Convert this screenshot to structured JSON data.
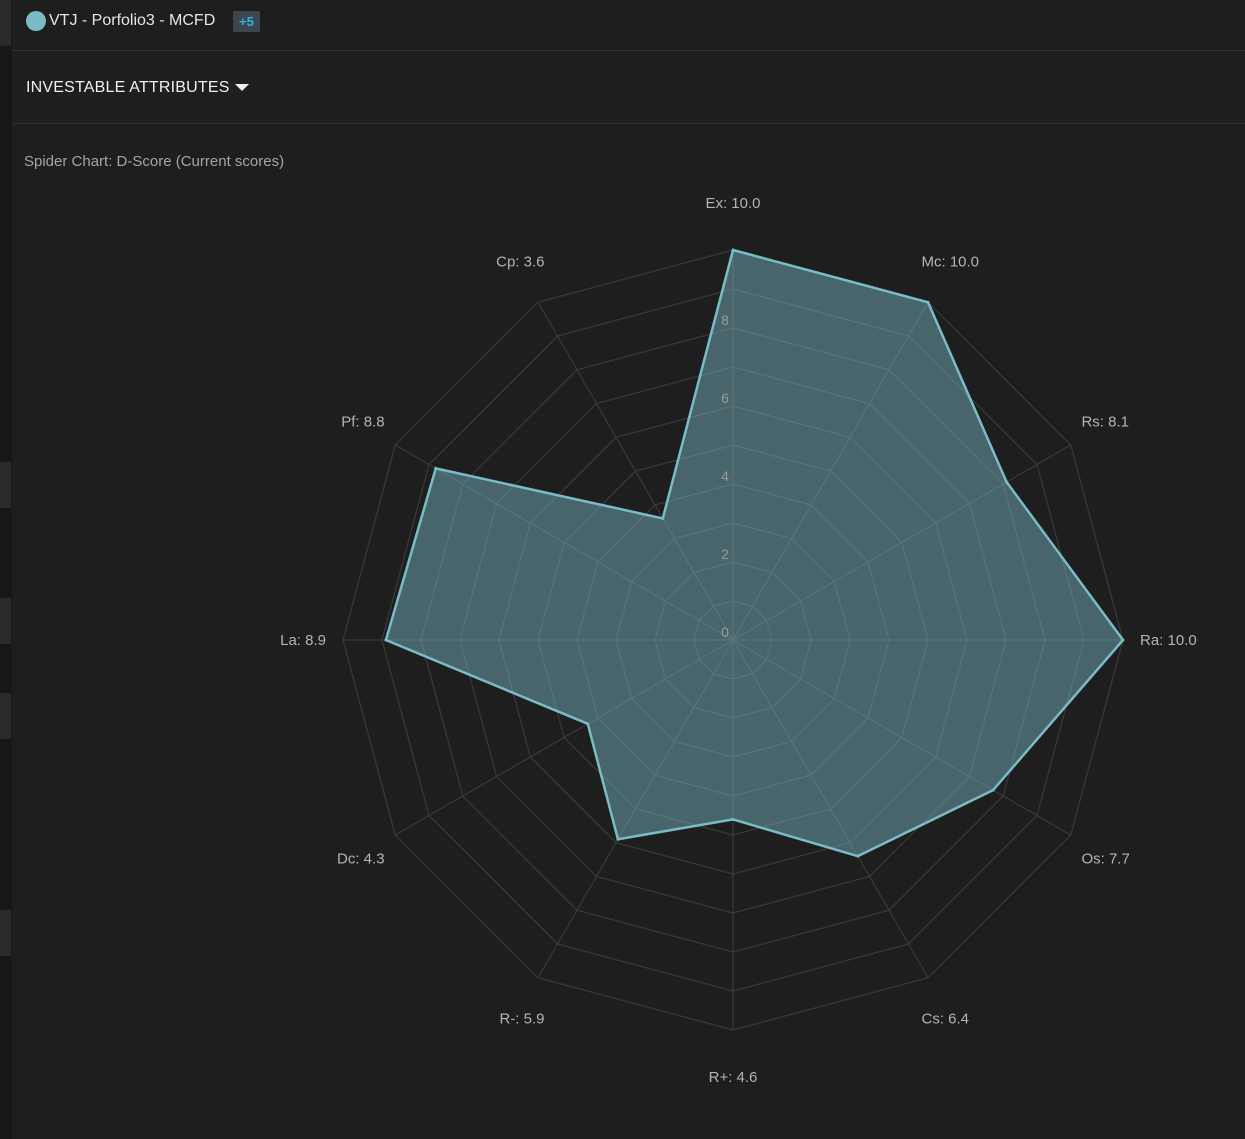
{
  "header": {
    "legend_color": "#79bcc7",
    "portfolio_name": "VTJ - Porfolio3 - MCFD",
    "more_badge": "+5"
  },
  "section": {
    "title": "INVESTABLE ATTRIBUTES",
    "caret_icon": "caret-down-icon"
  },
  "chart_caption": "Spider Chart: D-Score (Current scores)",
  "chart_data": {
    "type": "radar",
    "title": "Spider Chart: D-Score (Current scores)",
    "axes": [
      "Ex",
      "Mc",
      "Rs",
      "Ra",
      "Os",
      "Cs",
      "R+",
      "R-",
      "Dc",
      "La",
      "Pf",
      "Cp"
    ],
    "axis_labels": [
      "Ex: 10.0",
      "Mc: 10.0",
      "Rs: 8.1",
      "Ra: 10.0",
      "Os: 7.7",
      "Cs: 6.4",
      "R+: 4.6",
      "R-: 5.9",
      "Dc: 4.3",
      "La: 8.9",
      "Pf: 8.8",
      "Cp: 3.6"
    ],
    "series": [
      {
        "name": "VTJ - Porfolio3 - MCFD",
        "values": [
          10.0,
          10.0,
          8.1,
          10.0,
          7.7,
          6.4,
          4.6,
          5.9,
          4.3,
          8.9,
          8.8,
          3.6
        ],
        "color": "#79bcc7"
      }
    ],
    "rmin": 0,
    "rmax": 10,
    "tick_values": [
      0,
      2,
      4,
      6,
      8
    ],
    "tick_labels": [
      "0",
      "2",
      "4",
      "6",
      "8"
    ],
    "grid_rings": [
      1,
      2,
      3,
      4,
      5,
      6,
      7,
      8,
      9,
      10
    ],
    "grid": true,
    "legend": "top-left"
  }
}
